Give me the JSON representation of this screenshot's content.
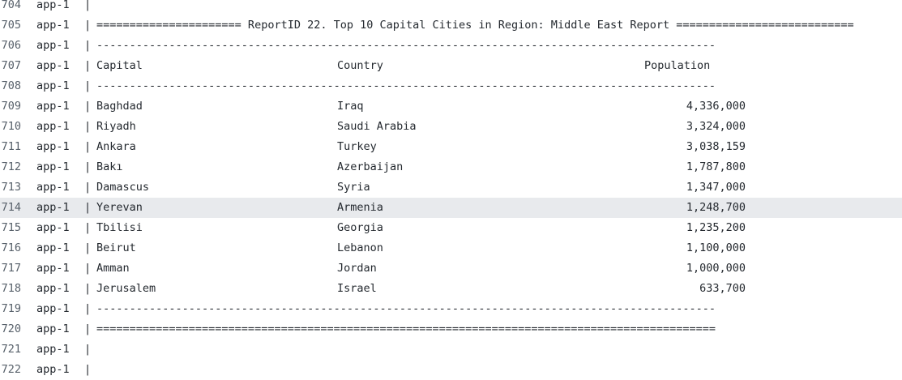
{
  "service": "app-1",
  "separator": "|",
  "lines": [
    {
      "num": "704",
      "kind": "stub"
    },
    {
      "num": "705",
      "kind": "text",
      "text": "====================== ReportID 22. Top 10 Capital Cities in Region: Middle East Report ==========================="
    },
    {
      "num": "706",
      "kind": "text",
      "text": "----------------------------------------------------------------------------------------------"
    },
    {
      "num": "707",
      "kind": "header",
      "capital": "Capital",
      "country": "Country",
      "population": "Population"
    },
    {
      "num": "708",
      "kind": "text",
      "text": "----------------------------------------------------------------------------------------------"
    },
    {
      "num": "709",
      "kind": "row",
      "capital": "Baghdad",
      "country": "Iraq",
      "population": "4,336,000"
    },
    {
      "num": "710",
      "kind": "row",
      "capital": "Riyadh",
      "country": "Saudi Arabia",
      "population": "3,324,000"
    },
    {
      "num": "711",
      "kind": "row",
      "capital": "Ankara",
      "country": "Turkey",
      "population": "3,038,159"
    },
    {
      "num": "712",
      "kind": "row",
      "capital": "Bakı",
      "country": "Azerbaijan",
      "population": "1,787,800"
    },
    {
      "num": "713",
      "kind": "row",
      "capital": "Damascus",
      "country": "Syria",
      "population": "1,347,000"
    },
    {
      "num": "714",
      "kind": "row",
      "capital": "Yerevan",
      "country": "Armenia",
      "population": "1,248,700",
      "highlight": true
    },
    {
      "num": "715",
      "kind": "row",
      "capital": "Tbilisi",
      "country": "Georgia",
      "population": "1,235,200"
    },
    {
      "num": "716",
      "kind": "row",
      "capital": "Beirut",
      "country": "Lebanon",
      "population": "1,100,000"
    },
    {
      "num": "717",
      "kind": "row",
      "capital": "Amman",
      "country": "Jordan",
      "population": "1,000,000"
    },
    {
      "num": "718",
      "kind": "row",
      "capital": "Jerusalem",
      "country": "Israel",
      "population": "633,700"
    },
    {
      "num": "719",
      "kind": "text",
      "text": "----------------------------------------------------------------------------------------------"
    },
    {
      "num": "720",
      "kind": "text",
      "text": "=============================================================================================="
    },
    {
      "num": "721",
      "kind": "text",
      "text": ""
    },
    {
      "num": "722",
      "kind": "stub"
    }
  ]
}
